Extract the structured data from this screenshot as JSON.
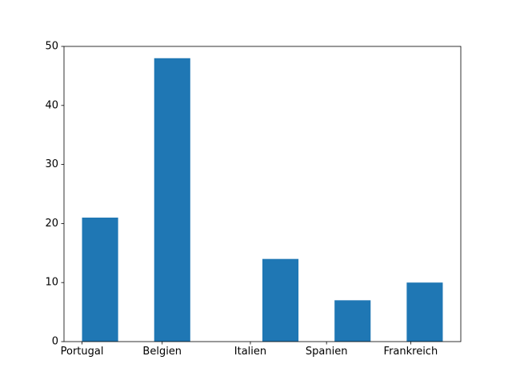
{
  "chart_data": {
    "type": "bar",
    "title": "",
    "xlabel": "",
    "ylabel": "",
    "bar_color": "#1f77b4",
    "ylim": [
      0,
      50
    ],
    "yticks": [
      0,
      10,
      20,
      30,
      40,
      50
    ],
    "xlim": [
      -0.225,
      3.825
    ],
    "bars": [
      {
        "x": 0.225,
        "height": 21
      },
      {
        "x": 1.125,
        "height": 48
      },
      {
        "x": 2.475,
        "height": 14
      },
      {
        "x": 3.375,
        "height": 7
      },
      {
        "x": 4.275,
        "height": 10
      }
    ],
    "bar_width": 0.45,
    "xticks": [
      {
        "value": 0.0,
        "label": "Portugal"
      },
      {
        "value": 1.0,
        "label": "Belgien"
      },
      {
        "value": 2.1,
        "label": "Italien"
      },
      {
        "value": 3.05,
        "label": "Spanien"
      },
      {
        "value": 4.1,
        "label": "Frankreich"
      }
    ]
  }
}
